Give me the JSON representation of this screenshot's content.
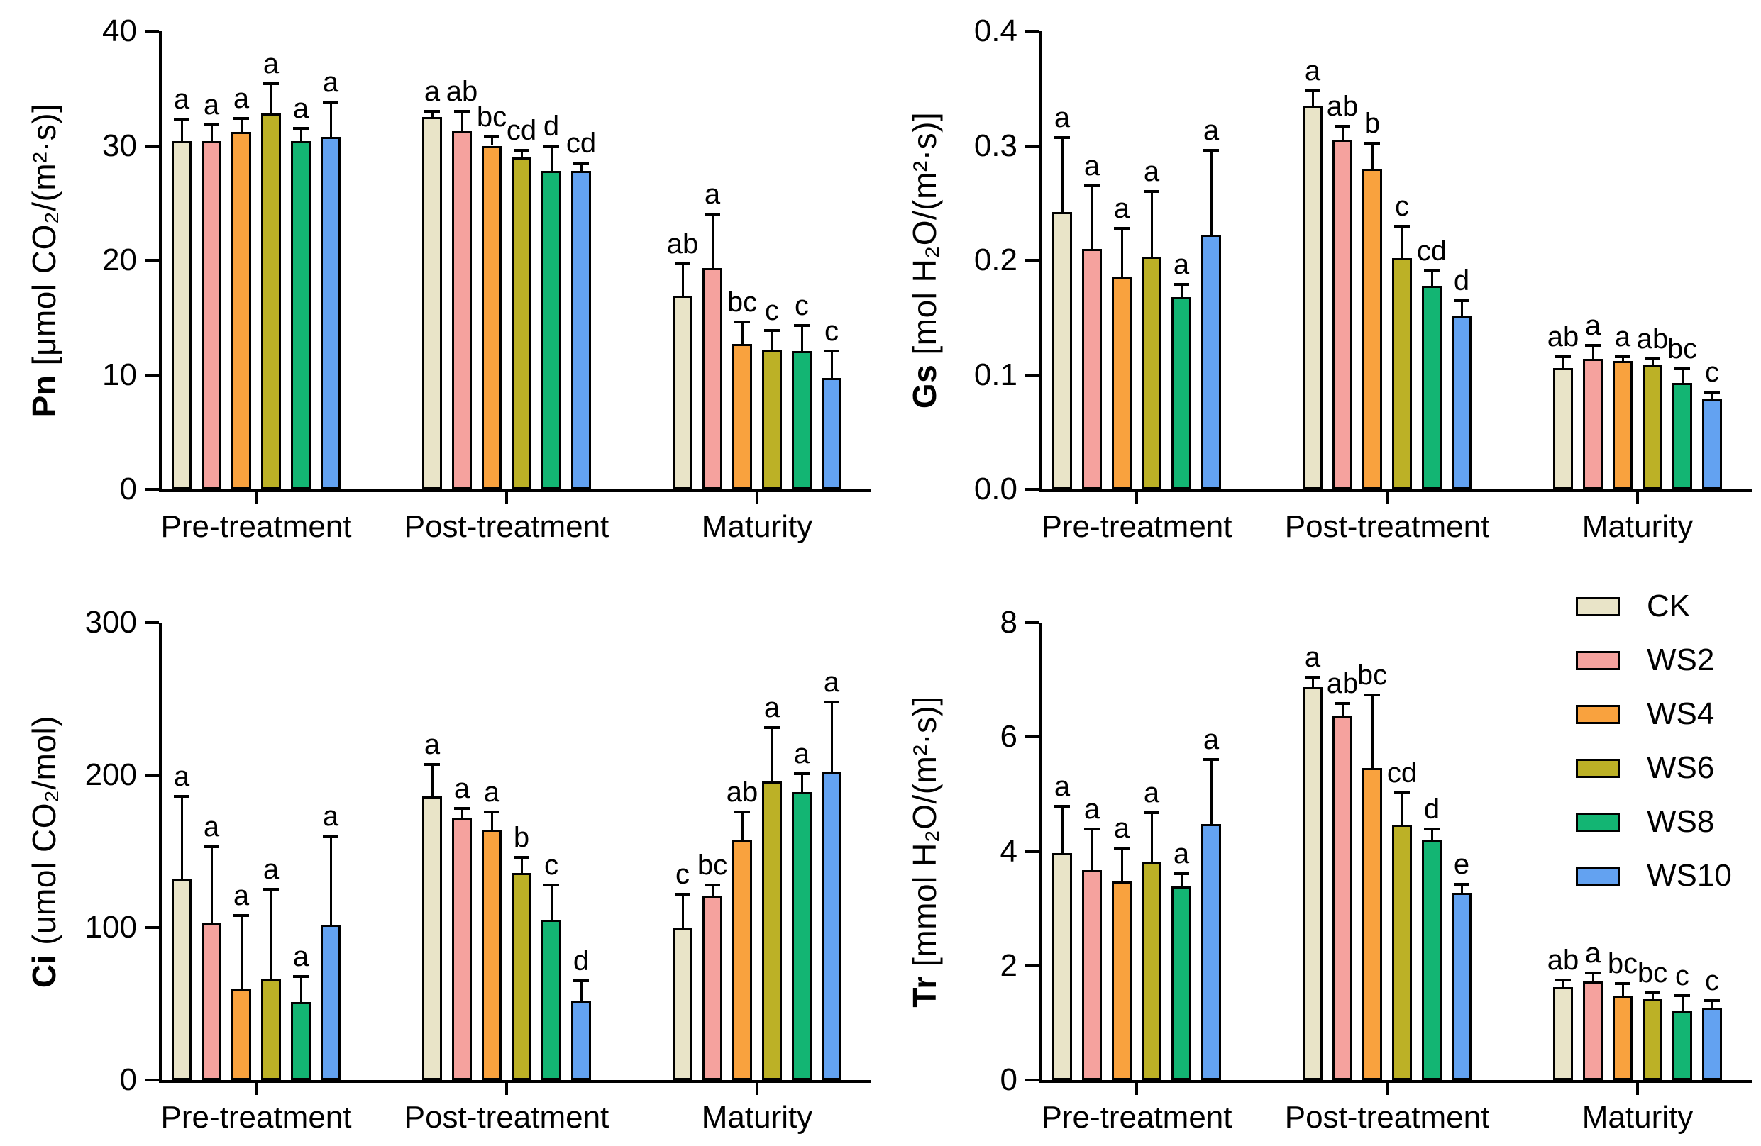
{
  "page": {
    "background": "#ffffff"
  },
  "treatments": [
    {
      "name": "CK",
      "color": "#E9E4C8"
    },
    {
      "name": "WS2",
      "color": "#F5A29E"
    },
    {
      "name": "WS4",
      "color": "#F9A23E"
    },
    {
      "name": "WS6",
      "color": "#BCB126"
    },
    {
      "name": "WS8",
      "color": "#13B573"
    },
    {
      "name": "WS10",
      "color": "#63A2F1"
    }
  ],
  "groups": [
    "Pre-treatment",
    "Post-treatment",
    "Maturity"
  ],
  "legend": {
    "entries": [
      "CK",
      "WS2",
      "WS4",
      "WS6",
      "WS8",
      "WS10"
    ],
    "position": "top-right-of-tr-panel"
  },
  "chart_data": [
    {
      "id": "Pn",
      "type": "bar",
      "ylabel_bold": "Pn",
      "ylabel_rest": " [μmol CO₂/(m²·s)]",
      "ylim": [
        0,
        40
      ],
      "yticks": [
        "0",
        "10",
        "20",
        "30",
        "40"
      ],
      "categories": [
        "Pre-treatment",
        "Post-treatment",
        "Maturity"
      ],
      "grid": false,
      "series": [
        {
          "name": "CK",
          "values": [
            30.4,
            32.5,
            16.9
          ],
          "errors": [
            1.9,
            0.5,
            2.8
          ],
          "letters": [
            "a",
            "a",
            "ab"
          ]
        },
        {
          "name": "WS2",
          "values": [
            30.4,
            31.3,
            19.3
          ],
          "errors": [
            1.4,
            1.7,
            4.7
          ],
          "letters": [
            "a",
            "ab",
            "a"
          ]
        },
        {
          "name": "WS4",
          "values": [
            31.2,
            30.0,
            12.7
          ],
          "errors": [
            1.2,
            0.8,
            1.9
          ],
          "letters": [
            "a",
            "bc",
            "bc"
          ]
        },
        {
          "name": "WS6",
          "values": [
            32.8,
            29.0,
            12.2
          ],
          "errors": [
            2.6,
            0.6,
            1.7
          ],
          "letters": [
            "a",
            "cd",
            "c"
          ]
        },
        {
          "name": "WS8",
          "values": [
            30.4,
            27.8,
            12.1
          ],
          "errors": [
            1.1,
            2.2,
            2.2
          ],
          "letters": [
            "a",
            "d",
            "c"
          ]
        },
        {
          "name": "WS10",
          "values": [
            30.8,
            27.8,
            9.7
          ],
          "errors": [
            3.0,
            0.7,
            2.4
          ],
          "letters": [
            "a",
            "cd",
            "c"
          ]
        }
      ]
    },
    {
      "id": "Gs",
      "type": "bar",
      "ylabel_bold": "Gs",
      "ylabel_rest": " [mol H₂O/(m²·s)]",
      "ylim": [
        0,
        0.4
      ],
      "yticks": [
        "0.0",
        "0.1",
        "0.2",
        "0.3",
        "0.4"
      ],
      "categories": [
        "Pre-treatment",
        "Post-treatment",
        "Maturity"
      ],
      "grid": false,
      "series": [
        {
          "name": "CK",
          "values": [
            0.242,
            0.335,
            0.106
          ],
          "errors": [
            0.065,
            0.013,
            0.01
          ],
          "letters": [
            "a",
            "a",
            "ab"
          ]
        },
        {
          "name": "WS2",
          "values": [
            0.21,
            0.305,
            0.114
          ],
          "errors": [
            0.055,
            0.012,
            0.012
          ],
          "letters": [
            "a",
            "ab",
            "a"
          ]
        },
        {
          "name": "WS4",
          "values": [
            0.185,
            0.28,
            0.112
          ],
          "errors": [
            0.043,
            0.022,
            0.004
          ],
          "letters": [
            "a",
            "b",
            "a"
          ]
        },
        {
          "name": "WS6",
          "values": [
            0.203,
            0.202,
            0.109
          ],
          "errors": [
            0.057,
            0.028,
            0.005
          ],
          "letters": [
            "a",
            "c",
            "ab"
          ]
        },
        {
          "name": "WS8",
          "values": [
            0.168,
            0.178,
            0.093
          ],
          "errors": [
            0.011,
            0.013,
            0.012
          ],
          "letters": [
            "a",
            "cd",
            "bc"
          ]
        },
        {
          "name": "WS10",
          "values": [
            0.222,
            0.152,
            0.079
          ],
          "errors": [
            0.074,
            0.013,
            0.006
          ],
          "letters": [
            "a",
            "d",
            "c"
          ]
        }
      ]
    },
    {
      "id": "Ci",
      "type": "bar",
      "ylabel_bold": "Ci",
      "ylabel_rest": " (umol CO₂/mol)",
      "ylim": [
        0,
        300
      ],
      "yticks": [
        "0",
        "100",
        "200",
        "300"
      ],
      "categories": [
        "Pre-treatment",
        "Post-treatment",
        "Maturity"
      ],
      "grid": false,
      "series": [
        {
          "name": "CK",
          "values": [
            132,
            186,
            100
          ],
          "errors": [
            54,
            21,
            22
          ],
          "letters": [
            "a",
            "a",
            "c"
          ]
        },
        {
          "name": "WS2",
          "values": [
            103,
            172,
            121
          ],
          "errors": [
            50,
            6,
            7
          ],
          "letters": [
            "a",
            "a",
            "bc"
          ]
        },
        {
          "name": "WS4",
          "values": [
            60,
            164,
            157
          ],
          "errors": [
            48,
            12,
            19
          ],
          "letters": [
            "a",
            "a",
            "ab"
          ]
        },
        {
          "name": "WS6",
          "values": [
            66,
            136,
            196
          ],
          "errors": [
            59,
            10,
            35
          ],
          "letters": [
            "a",
            "b",
            "a"
          ]
        },
        {
          "name": "WS8",
          "values": [
            51,
            105,
            189
          ],
          "errors": [
            17,
            23,
            12
          ],
          "letters": [
            "a",
            "c",
            "a"
          ]
        },
        {
          "name": "WS10",
          "values": [
            102,
            52,
            202
          ],
          "errors": [
            58,
            13,
            46
          ],
          "letters": [
            "a",
            "d",
            "a"
          ]
        }
      ]
    },
    {
      "id": "Tr",
      "type": "bar",
      "ylabel_bold": "Tr",
      "ylabel_rest": " [mmol H₂O/(m²·s)]",
      "ylim": [
        0,
        8
      ],
      "yticks": [
        "0",
        "2",
        "4",
        "6",
        "8"
      ],
      "categories": [
        "Pre-treatment",
        "Post-treatment",
        "Maturity"
      ],
      "grid": false,
      "series": [
        {
          "name": "CK",
          "values": [
            3.97,
            6.87,
            1.62
          ],
          "errors": [
            0.82,
            0.18,
            0.13
          ],
          "letters": [
            "a",
            "a",
            "ab"
          ]
        },
        {
          "name": "WS2",
          "values": [
            3.67,
            6.36,
            1.72
          ],
          "errors": [
            0.72,
            0.23,
            0.15
          ],
          "letters": [
            "a",
            "ab",
            "a"
          ]
        },
        {
          "name": "WS4",
          "values": [
            3.47,
            5.46,
            1.46
          ],
          "errors": [
            0.58,
            1.28,
            0.23
          ],
          "letters": [
            "a",
            "bc",
            "bc"
          ]
        },
        {
          "name": "WS6",
          "values": [
            3.82,
            4.47,
            1.42
          ],
          "errors": [
            0.86,
            0.55,
            0.11
          ],
          "letters": [
            "a",
            "cd",
            "bc"
          ]
        },
        {
          "name": "WS8",
          "values": [
            3.38,
            4.2,
            1.21
          ],
          "errors": [
            0.23,
            0.19,
            0.26
          ],
          "letters": [
            "a",
            "d",
            "c"
          ]
        },
        {
          "name": "WS10",
          "values": [
            4.48,
            3.28,
            1.27
          ],
          "errors": [
            1.13,
            0.14,
            0.12
          ],
          "letters": [
            "a",
            "e",
            "c"
          ]
        }
      ]
    }
  ]
}
